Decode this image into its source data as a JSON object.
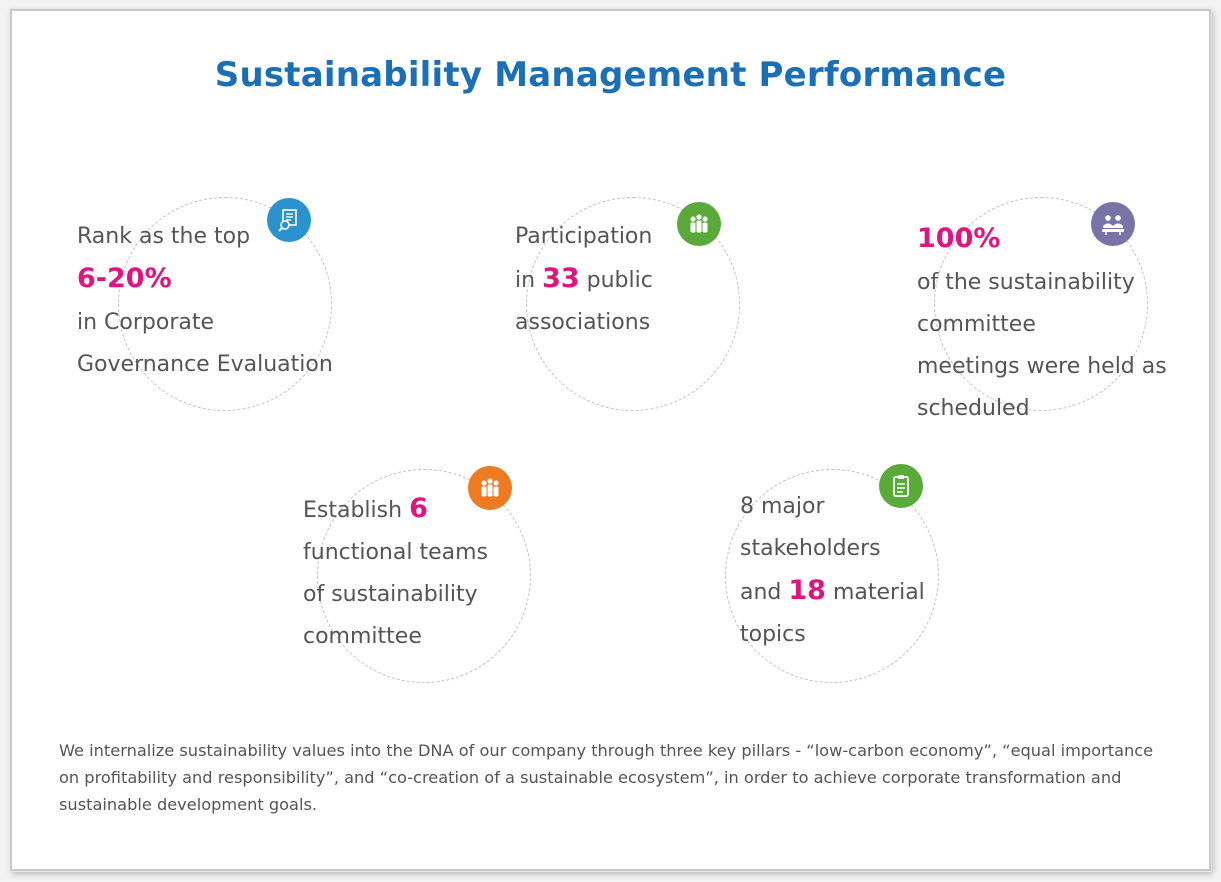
{
  "title": "Sustainability Management Performance",
  "accent_color": "#e0147f",
  "title_color": "#1b6fb6",
  "items": [
    {
      "icon": "magnifier-document-icon",
      "icon_color": "#2a93cf",
      "line1": "Rank as the top",
      "highlight": "6-20%",
      "line3": "in Corporate",
      "line4": "Governance Evaluation"
    },
    {
      "icon": "people-group-icon",
      "icon_color": "#5aaa3a",
      "line1": "Participation",
      "prefix": "in",
      "highlight": "33",
      "suffix": "public",
      "line3": "associations"
    },
    {
      "icon": "meeting-icon",
      "icon_color": "#7a73a8",
      "highlight": "100%",
      "line2": "of the sustainability",
      "line3": "committee",
      "line4": "meetings were held as",
      "line5": "scheduled"
    },
    {
      "icon": "team-icon",
      "icon_color": "#ee7a22",
      "prefix": "Establish",
      "highlight": "6",
      "line2": "functional teams",
      "line3": "of sustainability",
      "line4": "committee"
    },
    {
      "icon": "clipboard-icon",
      "icon_color": "#5aaa3a",
      "line1": "8 major",
      "line2": "stakeholders",
      "prefix": "and",
      "highlight": "18",
      "suffix": "material",
      "line4": "topics"
    }
  ],
  "footer": "We internalize sustainability values into the DNA of our company through three key pillars - “low-carbon economy”, “equal importance on profitability and responsibility”, and “co-creation of a sustainable ecosystem”, in order to achieve corporate transformation and sustainable development goals."
}
